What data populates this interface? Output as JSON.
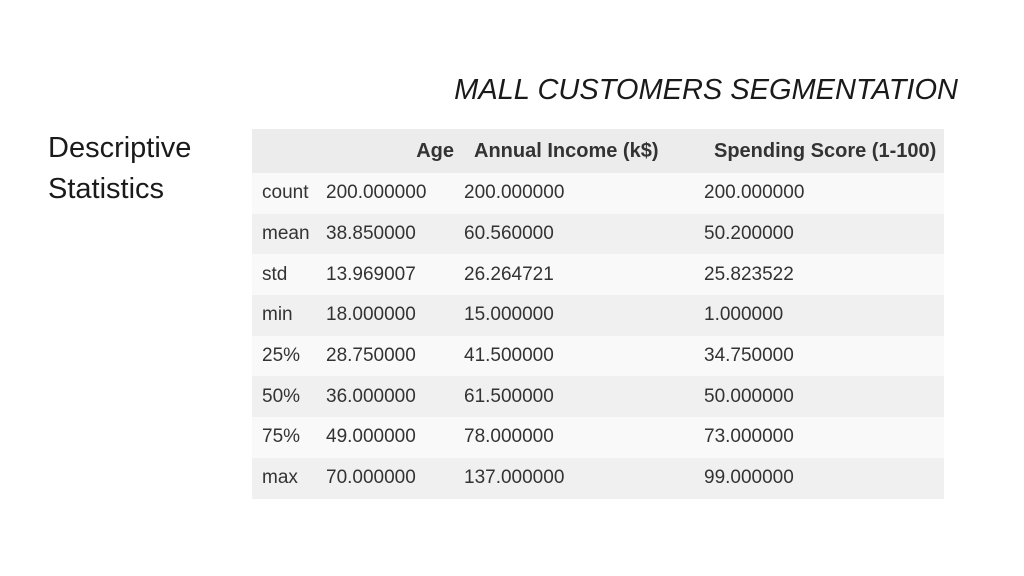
{
  "slide": {
    "title": "MALL CUSTOMERS SEGMENTATION",
    "heading_line1": "Descriptive",
    "heading_line2": "Statistics"
  },
  "table": {
    "headers": {
      "index": "",
      "age": "Age",
      "income": "Annual Income (k$)",
      "spending": "Spending Score (1-100)"
    },
    "rows": [
      {
        "stat": "count",
        "age": "200.000000",
        "income": "200.000000",
        "spending": "200.000000"
      },
      {
        "stat": "mean",
        "age": "38.850000",
        "income": "60.560000",
        "spending": "50.200000"
      },
      {
        "stat": "std",
        "age": "13.969007",
        "income": "26.264721",
        "spending": "25.823522"
      },
      {
        "stat": "min",
        "age": "18.000000",
        "income": "15.000000",
        "spending": "1.000000"
      },
      {
        "stat": "25%",
        "age": "28.750000",
        "income": "41.500000",
        "spending": "34.750000"
      },
      {
        "stat": "50%",
        "age": "36.000000",
        "income": "61.500000",
        "spending": "50.000000"
      },
      {
        "stat": "75%",
        "age": "49.000000",
        "income": "78.000000",
        "spending": "73.000000"
      },
      {
        "stat": "max",
        "age": "70.000000",
        "income": "137.000000",
        "spending": "99.000000"
      }
    ]
  },
  "colors": {
    "header_bg": "#ececec",
    "row_odd_bg": "#f9f9f9",
    "row_even_bg": "#f0f0f0",
    "text": "#333333"
  }
}
